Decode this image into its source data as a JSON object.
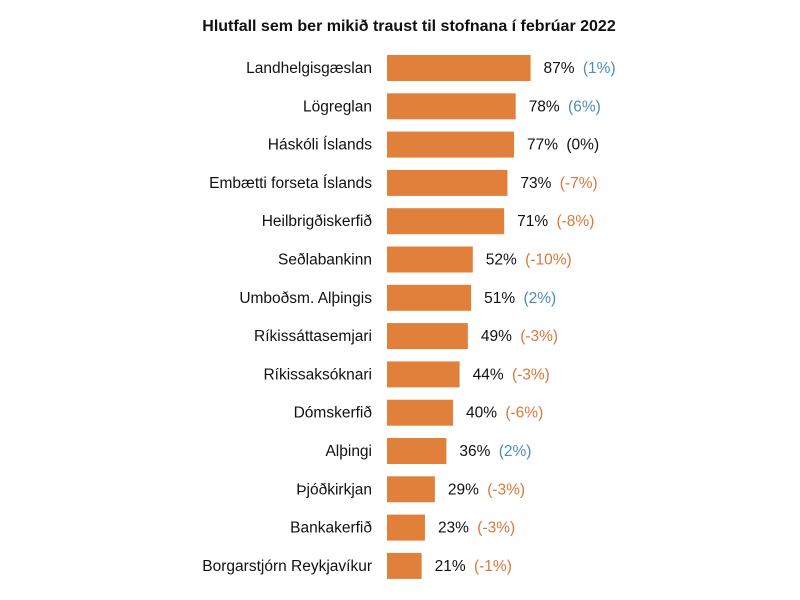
{
  "chart_data": {
    "type": "bar",
    "orientation": "horizontal",
    "title": "Hlutfall sem ber mikið traust til stofnana í febrúar 2022",
    "xlabel": "",
    "ylabel": "",
    "xlim": [
      0,
      100
    ],
    "grid": false,
    "legend": "none",
    "categories": [
      "Landhelgisgæslan",
      "Lögreglan",
      "Háskóli Íslands",
      "Embætti forseta Íslands",
      "Heilbrigðiskerfið",
      "Seðlabankinn",
      "Umboðsm. Alþingis",
      "Ríkissáttasemjari",
      "Ríkissaksóknari",
      "Dómskerfið",
      "Alþingi",
      "Þjóðkirkjan",
      "Bankakerfið",
      "Borgarstjórn Reykjavíkur"
    ],
    "values": [
      87,
      78,
      77,
      73,
      71,
      52,
      51,
      49,
      44,
      40,
      36,
      29,
      23,
      21
    ],
    "value_labels": [
      "87%",
      "78%",
      "77%",
      "73%",
      "71%",
      "52%",
      "51%",
      "49%",
      "44%",
      "40%",
      "36%",
      "29%",
      "23%",
      "21%"
    ],
    "change_labels": [
      "(1%)",
      "(6%)",
      "(0%)",
      "(-7%)",
      "(-8%)",
      "(-10%)",
      "(2%)",
      "(-3%)",
      "(-3%)",
      "(-6%)",
      "(2%)",
      "(-3%)",
      "(-3%)",
      "(-1%)"
    ],
    "changes": [
      1,
      6,
      0,
      -7,
      -8,
      -10,
      2,
      -3,
      -3,
      -6,
      2,
      -3,
      -3,
      -1
    ]
  },
  "colors": {
    "bar": "#e0803a",
    "increase": "#4a8db5",
    "decrease": "#d8783a",
    "neutral": "#111111"
  }
}
